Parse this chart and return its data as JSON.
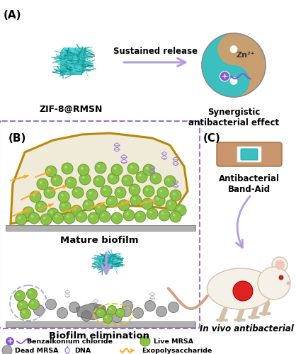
{
  "background_color": "#ffffff",
  "panel_A_label": "(A)",
  "panel_B_label": "(B)",
  "panel_C_label": "(C)",
  "zif_label": "ZIF-8@RMSN",
  "arrow_text": "Sustained release",
  "synergistic_text": "Synergistic\nantibacterial effect",
  "zn_text": "Zn²⁺",
  "mature_biofilm_text": "Mature biofilm",
  "biofilm_elim_text": "Biofilm elimination",
  "bandaid_text": "Antibacterial\nBand-Aid",
  "invivo_text": "In vivo antibacterial",
  "legend_bac": "Benzalkonium chloride",
  "legend_live": "Live MRSA",
  "legend_dead": "Dead MRSA",
  "legend_dna": "DNA",
  "legend_exo": "Exopolysaccharide",
  "color_teal": "#3bbfbf",
  "color_tan": "#c8a070",
  "color_green_bac": "#8bc34a",
  "color_purple": "#9575cd",
  "color_purple_light": "#b39ddb",
  "color_orange": "#f9a825",
  "color_biofilm_bg": "#f0ead8",
  "color_biofilm_border": "#b8880a",
  "color_surface": "#a0a0a0",
  "color_bandaid_main": "#c8956c",
  "fig_width": 4.18,
  "fig_height": 5.0
}
